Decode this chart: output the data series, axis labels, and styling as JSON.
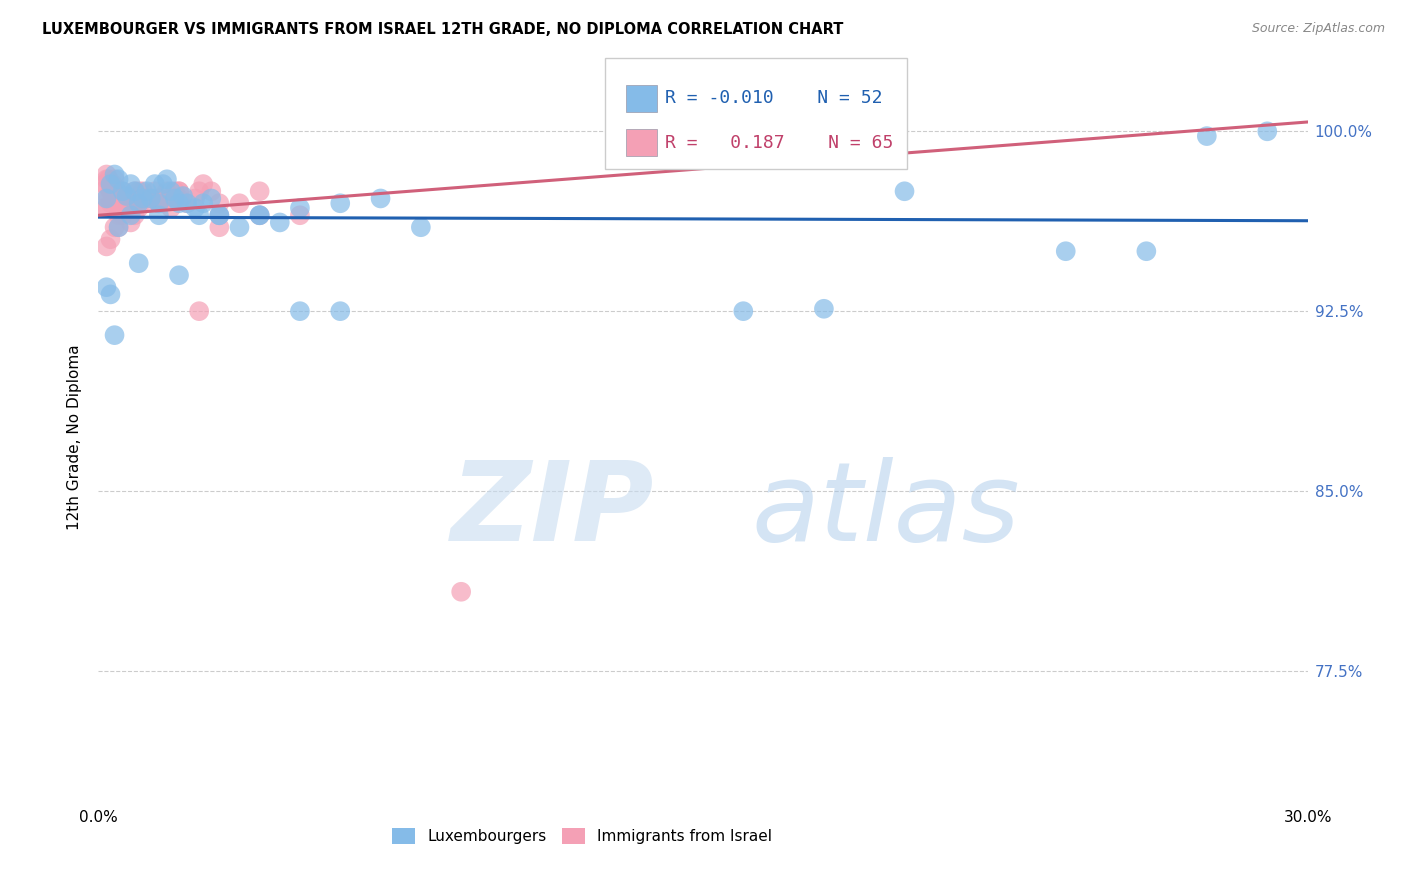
{
  "title": "LUXEMBOURGER VS IMMIGRANTS FROM ISRAEL 12TH GRADE, NO DIPLOMA CORRELATION CHART",
  "source": "Source: ZipAtlas.com",
  "ylabel": "12th Grade, No Diploma",
  "xlim": [
    0.0,
    30.0
  ],
  "ylim": [
    72.0,
    102.5
  ],
  "legend_lux": "Luxembourgers",
  "legend_isr": "Immigrants from Israel",
  "R_lux": "-0.010",
  "N_lux": "52",
  "R_isr": "0.187",
  "N_isr": "65",
  "color_lux": "#85BBE8",
  "color_isr": "#F4A0B5",
  "line_color_lux": "#2060B0",
  "line_color_isr": "#D0607A",
  "lux_x": [
    0.2,
    0.3,
    0.4,
    0.5,
    0.6,
    0.7,
    0.8,
    0.9,
    1.0,
    1.1,
    1.2,
    1.3,
    1.4,
    1.5,
    1.6,
    1.7,
    1.8,
    1.9,
    2.0,
    2.1,
    2.2,
    2.4,
    2.6,
    2.8,
    3.0,
    3.5,
    4.0,
    4.5,
    5.0,
    6.0,
    7.0,
    8.0,
    0.5,
    0.8,
    1.0,
    1.5,
    2.0,
    2.5,
    3.0,
    4.0,
    5.0,
    6.0,
    16.0,
    18.0,
    20.0,
    24.0,
    26.0,
    27.5,
    29.0,
    0.2,
    0.3,
    0.4
  ],
  "lux_y": [
    97.2,
    97.8,
    98.2,
    98.0,
    97.5,
    97.3,
    97.8,
    97.5,
    97.0,
    97.2,
    97.5,
    97.2,
    97.8,
    97.0,
    97.8,
    98.0,
    97.5,
    97.2,
    97.0,
    97.3,
    97.0,
    96.8,
    97.0,
    97.2,
    96.5,
    96.0,
    96.5,
    96.2,
    96.8,
    97.0,
    97.2,
    96.0,
    96.0,
    96.5,
    94.5,
    96.5,
    94.0,
    96.5,
    96.5,
    96.5,
    92.5,
    92.5,
    92.5,
    92.6,
    97.5,
    95.0,
    95.0,
    99.8,
    100.0,
    93.5,
    93.2,
    91.5
  ],
  "isr_x": [
    0.1,
    0.15,
    0.2,
    0.25,
    0.3,
    0.35,
    0.4,
    0.45,
    0.5,
    0.6,
    0.7,
    0.8,
    0.9,
    1.0,
    1.1,
    1.2,
    1.3,
    1.4,
    1.5,
    1.6,
    1.7,
    1.8,
    1.9,
    2.0,
    2.2,
    2.4,
    2.6,
    2.8,
    3.0,
    3.5,
    4.0,
    0.2,
    0.3,
    0.5,
    0.7,
    0.9,
    1.0,
    1.2,
    1.5,
    1.8,
    2.0,
    2.5,
    3.0,
    4.0,
    0.4,
    0.6,
    0.8,
    1.0,
    1.5,
    2.5,
    0.2,
    0.3,
    0.5,
    0.7,
    9.0,
    0.2,
    0.3,
    0.5,
    1.0,
    1.5,
    2.0,
    3.0,
    5.0,
    0.15,
    0.25
  ],
  "isr_y": [
    97.5,
    97.8,
    98.2,
    98.0,
    97.5,
    97.8,
    98.0,
    97.5,
    97.2,
    97.5,
    97.2,
    97.0,
    97.5,
    97.2,
    97.5,
    97.0,
    97.2,
    97.5,
    97.2,
    97.0,
    97.5,
    97.2,
    97.5,
    97.2,
    97.0,
    97.2,
    97.8,
    97.5,
    96.5,
    97.0,
    97.5,
    96.8,
    97.0,
    96.5,
    96.8,
    96.5,
    97.0,
    97.2,
    97.0,
    96.8,
    97.5,
    92.5,
    96.0,
    96.5,
    96.0,
    96.5,
    96.2,
    96.8,
    97.0,
    97.5,
    95.2,
    95.5,
    96.0,
    97.2,
    80.8,
    98.0,
    97.5,
    97.0,
    97.5,
    97.2,
    97.5,
    97.0,
    96.5,
    96.8,
    97.2
  ]
}
